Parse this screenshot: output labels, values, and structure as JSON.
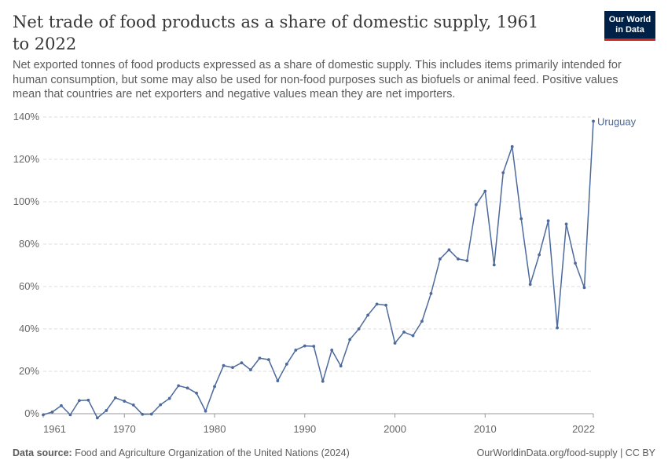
{
  "header": {
    "title": "Net trade of food products as a share of domestic supply, 1961 to 2022",
    "subtitle": "Net exported tonnes of food products expressed as a share of domestic supply. This includes items primarily intended for human consumption, but some may also be used for non-food purposes such as biofuels or animal feed. Positive values mean that countries are net exporters and negative values mean they are net importers.",
    "logo_line1": "Our World",
    "logo_line2": "in Data"
  },
  "footer": {
    "source_label": "Data source:",
    "source_text": "Food and Agriculture Organization of the United Nations (2024)",
    "url": "OurWorldinData.org/food-supply | CC BY"
  },
  "colors": {
    "series": "#4c6a9c",
    "grid": "#dddddd",
    "logo_bg": "#002147",
    "logo_accent": "#ce261e"
  },
  "chart_data": {
    "type": "line",
    "title": "Net trade of food products as a share of domestic supply, 1961 to 2022",
    "xlabel": "",
    "ylabel": "",
    "xlim": [
      1961,
      2022
    ],
    "ylim": [
      0,
      140
    ],
    "x_ticks": [
      1961,
      1970,
      1980,
      1990,
      2000,
      2010,
      2022
    ],
    "y_ticks": [
      0,
      20,
      40,
      60,
      80,
      100,
      120,
      140
    ],
    "y_tick_suffix": "%",
    "grid": "horizontal dashed",
    "legend": "end-of-line label",
    "series": [
      {
        "name": "Uruguay",
        "x": [
          1961,
          1962,
          1963,
          1964,
          1965,
          1966,
          1967,
          1968,
          1969,
          1970,
          1971,
          1972,
          1973,
          1974,
          1975,
          1976,
          1977,
          1978,
          1979,
          1980,
          1981,
          1982,
          1983,
          1984,
          1985,
          1986,
          1987,
          1988,
          1989,
          1990,
          1991,
          1992,
          1993,
          1994,
          1995,
          1996,
          1997,
          1998,
          1999,
          2000,
          2001,
          2002,
          2003,
          2004,
          2005,
          2006,
          2007,
          2008,
          2009,
          2010,
          2011,
          2012,
          2013,
          2014,
          2015,
          2016,
          2017,
          2018,
          2019,
          2020,
          2021,
          2022
        ],
        "values": [
          -0.5,
          0.8,
          3.8,
          -0.5,
          6.2,
          6.4,
          -2,
          1.5,
          7.5,
          5.9,
          4.1,
          -0.3,
          -0.2,
          4.2,
          7.2,
          13.2,
          12.1,
          9.7,
          1.2,
          12.8,
          22.7,
          21.8,
          24,
          20.7,
          26.2,
          25.5,
          15.5,
          23.4,
          30,
          32,
          31.8,
          15.3,
          30,
          22.5,
          35,
          40,
          46.5,
          51.7,
          51.2,
          33.3,
          38.5,
          36.8,
          43.6,
          56.7,
          73,
          77.3,
          73,
          72.2,
          98.6,
          105,
          70.2,
          113.7,
          126,
          92,
          61,
          75,
          91,
          40.5,
          89.5,
          71,
          59.5,
          138
        ]
      }
    ]
  }
}
